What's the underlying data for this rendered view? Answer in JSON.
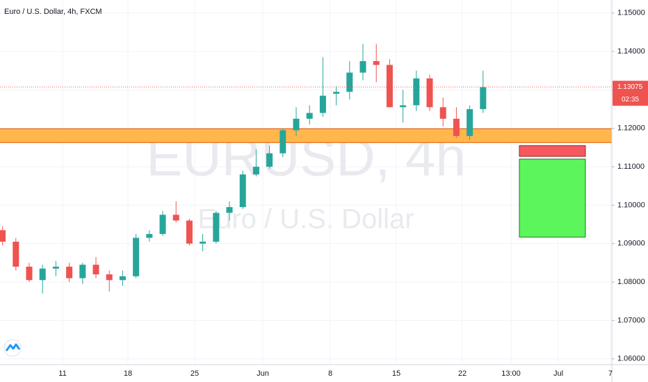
{
  "chart_data": {
    "type": "candlestick",
    "title": "Euro / U.S. Dollar, 4h, FXCM",
    "watermark": [
      "EURUSD, 4h",
      "Euro / U.S. Dollar"
    ],
    "up_color": "#26a69a",
    "down_color": "#ef5350",
    "open": [
      1.0935,
      1.0905,
      1.084,
      1.0805,
      1.0835,
      1.084,
      1.081,
      1.0845,
      1.082,
      1.0805,
      1.0815,
      1.0915,
      1.0925,
      1.0975,
      1.096,
      1.09,
      1.0905,
      1.098,
      1.0995,
      1.108,
      1.11,
      1.1135,
      1.1195,
      1.1225,
      1.124,
      1.129,
      1.1295,
      1.1345,
      1.1375,
      1.1365,
      1.1255,
      1.126,
      1.133,
      1.1255,
      1.1225,
      1.118,
      1.125
    ],
    "high": [
      1.0945,
      1.0915,
      1.085,
      1.0845,
      1.0855,
      1.085,
      1.085,
      1.0865,
      1.083,
      1.083,
      1.0925,
      1.0935,
      1.0985,
      1.101,
      1.0965,
      1.0925,
      1.0985,
      1.101,
      1.109,
      1.1145,
      1.1155,
      1.12,
      1.1255,
      1.126,
      1.1385,
      1.131,
      1.1375,
      1.142,
      1.142,
      1.138,
      1.13,
      1.135,
      1.134,
      1.128,
      1.1255,
      1.126,
      1.135
    ],
    "low": [
      1.0895,
      1.083,
      1.08,
      1.077,
      1.0815,
      1.08,
      1.0795,
      1.081,
      1.0775,
      1.079,
      1.081,
      1.0905,
      1.092,
      1.0955,
      1.0895,
      1.088,
      1.09,
      1.096,
      1.099,
      1.1075,
      1.1095,
      1.1125,
      1.118,
      1.121,
      1.123,
      1.126,
      1.1275,
      1.1325,
      1.132,
      1.1255,
      1.1215,
      1.1245,
      1.1245,
      1.1205,
      1.1175,
      1.117,
      1.124
    ],
    "close": [
      1.0905,
      1.084,
      1.0805,
      1.0835,
      1.084,
      1.081,
      1.0845,
      1.082,
      1.0805,
      1.0815,
      1.0915,
      1.0925,
      1.0975,
      1.096,
      1.09,
      1.0905,
      1.098,
      1.0995,
      1.108,
      1.11,
      1.1135,
      1.1195,
      1.1225,
      1.124,
      1.1285,
      1.1295,
      1.1345,
      1.1375,
      1.1365,
      1.1255,
      1.126,
      1.133,
      1.1255,
      1.1225,
      1.118,
      1.125,
      1.1307
    ],
    "xaxis_labels": [
      "11",
      "18",
      "25",
      "Jun",
      "8",
      "15",
      "22",
      "13:00",
      "Jul",
      "7"
    ],
    "ylim": [
      1.0585,
      1.1534
    ],
    "yticks": [
      {
        "value": 1.15,
        "label": "1.15000"
      },
      {
        "value": 1.14,
        "label": "1.14000"
      },
      {
        "value": 1.13,
        "label": "1.13000"
      },
      {
        "value": 1.12,
        "label": "1.12000"
      },
      {
        "value": 1.11,
        "label": "1.11000"
      },
      {
        "value": 1.1,
        "label": "1.10000"
      },
      {
        "value": 1.09,
        "label": "1.09000"
      },
      {
        "value": 1.08,
        "label": "1.08000"
      },
      {
        "value": 1.07,
        "label": "1.07000"
      },
      {
        "value": 1.06,
        "label": "1.06000"
      }
    ],
    "last_price": 1.13075,
    "countdown": "02:35",
    "zone": [
      1.1163,
      1.1199
    ],
    "stop_box": [
      1.1127,
      1.1155
    ],
    "target_box": [
      1.0917,
      1.112
    ]
  }
}
